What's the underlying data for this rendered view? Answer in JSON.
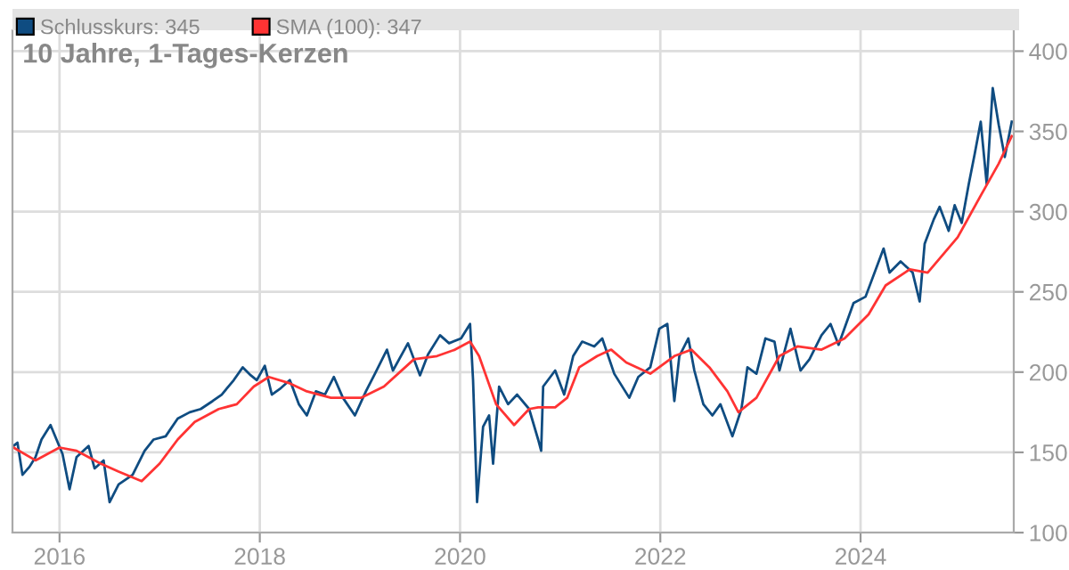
{
  "chart_data": {
    "type": "line",
    "title": "10 Jahre, 1-Tages-Kerzen",
    "xlim": [
      2015.53,
      2025.53
    ],
    "xticks": [
      2016,
      2018,
      2020,
      2022,
      2024
    ],
    "ylim": [
      100,
      413
    ],
    "yticks": [
      100,
      150,
      200,
      250,
      300,
      350,
      400
    ],
    "grid": true,
    "legend": "top",
    "marker": "none",
    "line_style": "solid",
    "series": [
      {
        "name": "Schlusskurs: 345",
        "color": "#0f4c81",
        "x": [
          2015.54,
          2015.58,
          2015.63,
          2015.7,
          2015.76,
          2015.82,
          2015.91,
          2015.97,
          2016.03,
          2016.1,
          2016.17,
          2016.29,
          2016.35,
          2016.44,
          2016.5,
          2016.59,
          2016.73,
          2016.85,
          2016.94,
          2017.06,
          2017.18,
          2017.3,
          2017.41,
          2017.53,
          2017.62,
          2017.74,
          2017.83,
          2017.91,
          2017.97,
          2018.05,
          2018.12,
          2018.21,
          2018.3,
          2018.39,
          2018.47,
          2018.56,
          2018.65,
          2018.74,
          2018.83,
          2018.95,
          2019.06,
          2019.15,
          2019.27,
          2019.33,
          2019.48,
          2019.6,
          2019.68,
          2019.8,
          2019.89,
          2020.01,
          2020.1,
          2020.13,
          2020.17,
          2020.23,
          2020.29,
          2020.33,
          2020.39,
          2020.48,
          2020.57,
          2020.69,
          2020.78,
          2020.81,
          2020.83,
          2020.95,
          2021.04,
          2021.13,
          2021.22,
          2021.34,
          2021.42,
          2021.54,
          2021.69,
          2021.78,
          2021.9,
          2021.99,
          2022.07,
          2022.14,
          2022.19,
          2022.28,
          2022.34,
          2022.43,
          2022.52,
          2022.6,
          2022.72,
          2022.81,
          2022.87,
          2022.96,
          2023.05,
          2023.14,
          2023.19,
          2023.3,
          2023.4,
          2023.49,
          2023.61,
          2023.7,
          2023.78,
          2023.93,
          2024.05,
          2024.17,
          2024.23,
          2024.29,
          2024.4,
          2024.52,
          2024.59,
          2024.64,
          2024.73,
          2024.79,
          2024.88,
          2024.94,
          2025.01,
          2025.08,
          2025.14,
          2025.2,
          2025.26,
          2025.32,
          2025.38,
          2025.44,
          2025.51
        ],
        "values": [
          154,
          156,
          136,
          141,
          147,
          158,
          167,
          158,
          149,
          127,
          147,
          154,
          140,
          145,
          119,
          130,
          136,
          151,
          158,
          160,
          171,
          175,
          177,
          182,
          186,
          195,
          203,
          198,
          195,
          204,
          186,
          190,
          195,
          180,
          173,
          188,
          186,
          197,
          184,
          173,
          188,
          199,
          214,
          201,
          218,
          198,
          211,
          223,
          218,
          221,
          230,
          195,
          119,
          166,
          173,
          143,
          191,
          180,
          186,
          177,
          158,
          151,
          191,
          201,
          186,
          210,
          219,
          216,
          221,
          199,
          184,
          197,
          203,
          227,
          230,
          182,
          210,
          221,
          201,
          180,
          173,
          180,
          160,
          177,
          203,
          199,
          221,
          219,
          201,
          227,
          201,
          208,
          223,
          230,
          217,
          243,
          247,
          267,
          277,
          262,
          269,
          262,
          244,
          280,
          295,
          303,
          288,
          304,
          293,
          317,
          336,
          356,
          317,
          377,
          354,
          334,
          356
        ]
      },
      {
        "name": "SMA (100): 347",
        "color": "#ff3333",
        "x": [
          2015.54,
          2015.76,
          2016.0,
          2016.17,
          2016.41,
          2016.59,
          2016.82,
          2017.0,
          2017.18,
          2017.35,
          2017.59,
          2017.77,
          2017.94,
          2018.09,
          2018.3,
          2018.47,
          2018.71,
          2019.01,
          2019.24,
          2019.54,
          2019.77,
          2019.95,
          2020.1,
          2020.19,
          2020.36,
          2020.54,
          2020.69,
          2020.78,
          2020.95,
          2021.07,
          2021.19,
          2021.37,
          2021.51,
          2021.66,
          2021.9,
          2022.14,
          2022.31,
          2022.49,
          2022.67,
          2022.78,
          2022.96,
          2023.19,
          2023.37,
          2023.61,
          2023.84,
          2024.08,
          2024.25,
          2024.49,
          2024.67,
          2024.97,
          2025.2,
          2025.38,
          2025.51
        ],
        "values": [
          153,
          145,
          153,
          151,
          143,
          138,
          132,
          143,
          158,
          169,
          177,
          180,
          191,
          197,
          193,
          188,
          184,
          184,
          191,
          208,
          210,
          214,
          219,
          210,
          180,
          167,
          177,
          178,
          178,
          184,
          203,
          210,
          214,
          206,
          199,
          210,
          214,
          203,
          188,
          175,
          184,
          210,
          216,
          214,
          221,
          236,
          254,
          264,
          262,
          284,
          310,
          330,
          347
        ]
      }
    ]
  }
}
